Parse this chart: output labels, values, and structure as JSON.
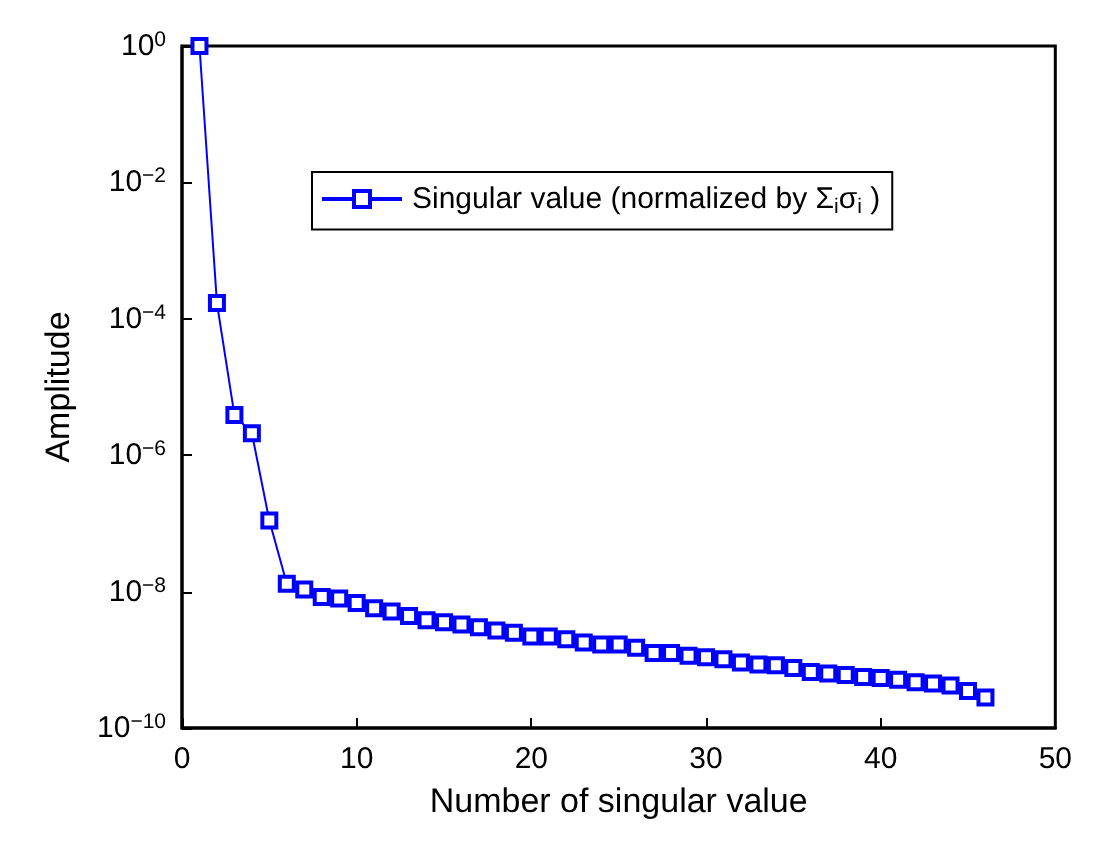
{
  "chart_data": {
    "type": "line",
    "xlabel": "Number of singular value",
    "ylabel": "Amplitude",
    "x": [
      1,
      2,
      3,
      4,
      5,
      6,
      7,
      8,
      9,
      10,
      11,
      12,
      13,
      14,
      15,
      16,
      17,
      18,
      19,
      20,
      21,
      22,
      23,
      24,
      25,
      26,
      27,
      28,
      29,
      30,
      31,
      32,
      33,
      34,
      35,
      36,
      37,
      38,
      39,
      40,
      41,
      42,
      43,
      44,
      45,
      46
    ],
    "series": [
      {
        "name": "Singular value (normalized by Σ$_{i}$σ$_{i}$ )",
        "color": "#0000ff",
        "values": [
          1,
          0.00017,
          3.9e-06,
          2.1e-06,
          1.1e-07,
          1.3e-08,
          1.07e-08,
          8.3e-09,
          7.9e-09,
          6.8e-09,
          5.7e-09,
          5.1e-09,
          4.4e-09,
          3.8e-09,
          3.55e-09,
          3.3e-09,
          3e-09,
          2.7e-09,
          2.5e-09,
          2.2e-09,
          2.2e-09,
          2e-09,
          1.8e-09,
          1.67e-09,
          1.67e-09,
          1.5e-09,
          1.26e-09,
          1.26e-09,
          1.15e-09,
          1.09e-09,
          1.02e-09,
          9.1e-10,
          8.5e-10,
          8.3e-10,
          7.6e-10,
          6.6e-10,
          6.3e-10,
          6e-10,
          5.6e-10,
          5.4e-10,
          5.1e-10,
          4.7e-10,
          4.5e-10,
          4.2e-10,
          3.5e-10,
          2.8e-10
        ]
      }
    ],
    "xlim": [
      0,
      50
    ],
    "xticks": [
      0,
      10,
      20,
      30,
      40,
      50
    ],
    "ylim": [
      1e-10,
      1
    ],
    "log": "y",
    "yticks": [
      {
        "value": 1e-10,
        "label": "10$^{−10}$"
      },
      {
        "value": 1e-08,
        "label": "10$^{−8}$"
      },
      {
        "value": 1e-06,
        "label": "10$^{−6}$"
      },
      {
        "value": 0.0001,
        "label": "10$^{−4}$"
      },
      {
        "value": 0.01,
        "label": "10$^{−2}$"
      },
      {
        "value": 1,
        "label": "10$^{0}$"
      }
    ],
    "grid": false,
    "legend": "top right",
    "marker": "square",
    "line_style": "solid"
  }
}
